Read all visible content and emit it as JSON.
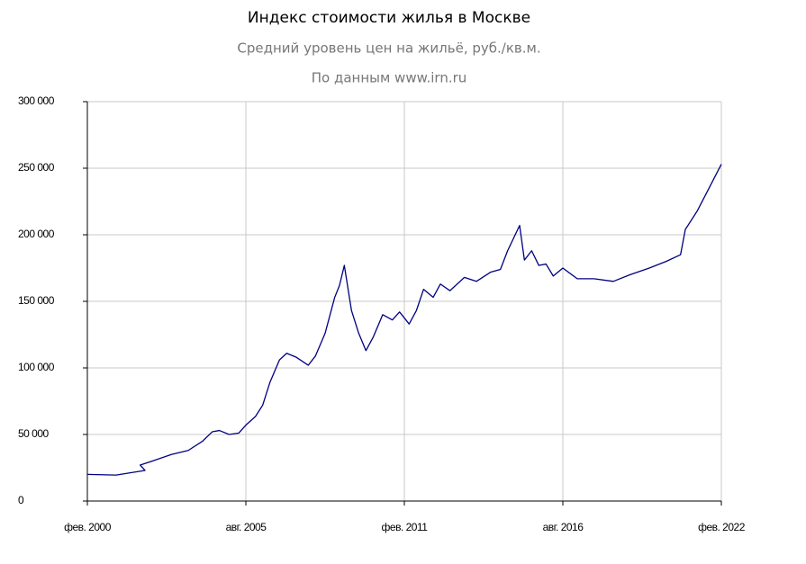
{
  "chart_data": {
    "type": "line",
    "title": "Индекс стоимости жилья в Москве",
    "subtitle": "Средний уровень цен на жильё, руб./кв.м.",
    "source": "По данным www.irn.ru",
    "x": [
      "2000-02",
      "2001-02",
      "2002-02",
      "2001-12",
      "2002-05",
      "2003-01",
      "2003-08",
      "2004-02",
      "2004-06",
      "2004-09",
      "2005-01",
      "2005-05",
      "2005-08",
      "2005-12",
      "2006-03",
      "2006-06",
      "2006-10",
      "2007-01",
      "2007-05",
      "2007-10",
      "2008-01",
      "2008-05",
      "2008-09",
      "2008-11",
      "2009-01",
      "2009-04",
      "2009-07",
      "2009-10",
      "2010-01",
      "2010-05",
      "2010-09",
      "2010-12",
      "2011-04",
      "2011-07",
      "2011-10",
      "2012-02",
      "2012-05",
      "2012-09",
      "2013-03",
      "2013-08",
      "2014-02",
      "2014-06",
      "2014-09",
      "2015-02",
      "2015-04",
      "2015-07",
      "2015-10",
      "2016-01",
      "2016-04",
      "2016-08",
      "2017-02",
      "2017-09",
      "2018-05",
      "2018-12",
      "2019-08",
      "2020-03",
      "2020-09",
      "2020-11",
      "2021-04",
      "2021-08",
      "2022-02"
    ],
    "series": [
      {
        "name": "Индекс стоимости жилья",
        "color": "#000080",
        "values": [
          20000,
          19500,
          23000,
          27000,
          30000,
          35000,
          38000,
          45000,
          52000,
          53000,
          50000,
          51000,
          57000,
          63500,
          72000,
          89000,
          106000,
          111000,
          108000,
          102000,
          109000,
          126000,
          153000,
          162000,
          177000,
          143000,
          126000,
          113000,
          123000,
          140000,
          136000,
          142000,
          133000,
          143000,
          159000,
          153000,
          163000,
          158000,
          168000,
          165000,
          172000,
          174000,
          188000,
          207000,
          181000,
          188000,
          177000,
          178000,
          169000,
          175000,
          167000,
          167000,
          165000,
          170000,
          175000,
          180000,
          185000,
          204000,
          218000,
          232000,
          253000
        ]
      }
    ],
    "xlim": [
      "2000-02",
      "2022-02"
    ],
    "xticks": [
      {
        "value": "2000-02",
        "label": "фев. 2000"
      },
      {
        "value": "2005-08",
        "label": "авг. 2005"
      },
      {
        "value": "2011-02",
        "label": "фев. 2011"
      },
      {
        "value": "2016-08",
        "label": "авг. 2016"
      },
      {
        "value": "2022-02",
        "label": "фев. 2022"
      }
    ],
    "ylim": [
      0,
      300000
    ],
    "yticks": [
      0,
      {
        "value": 50000,
        "label": "50 000"
      },
      {
        "value": 100000,
        "label": "100 000"
      },
      {
        "value": 150000,
        "label": "150 000"
      },
      {
        "value": 200000,
        "label": "200 000"
      },
      {
        "value": 250000,
        "label": "250 000"
      },
      {
        "value": 300000,
        "label": "300 000"
      }
    ],
    "grid": true
  }
}
